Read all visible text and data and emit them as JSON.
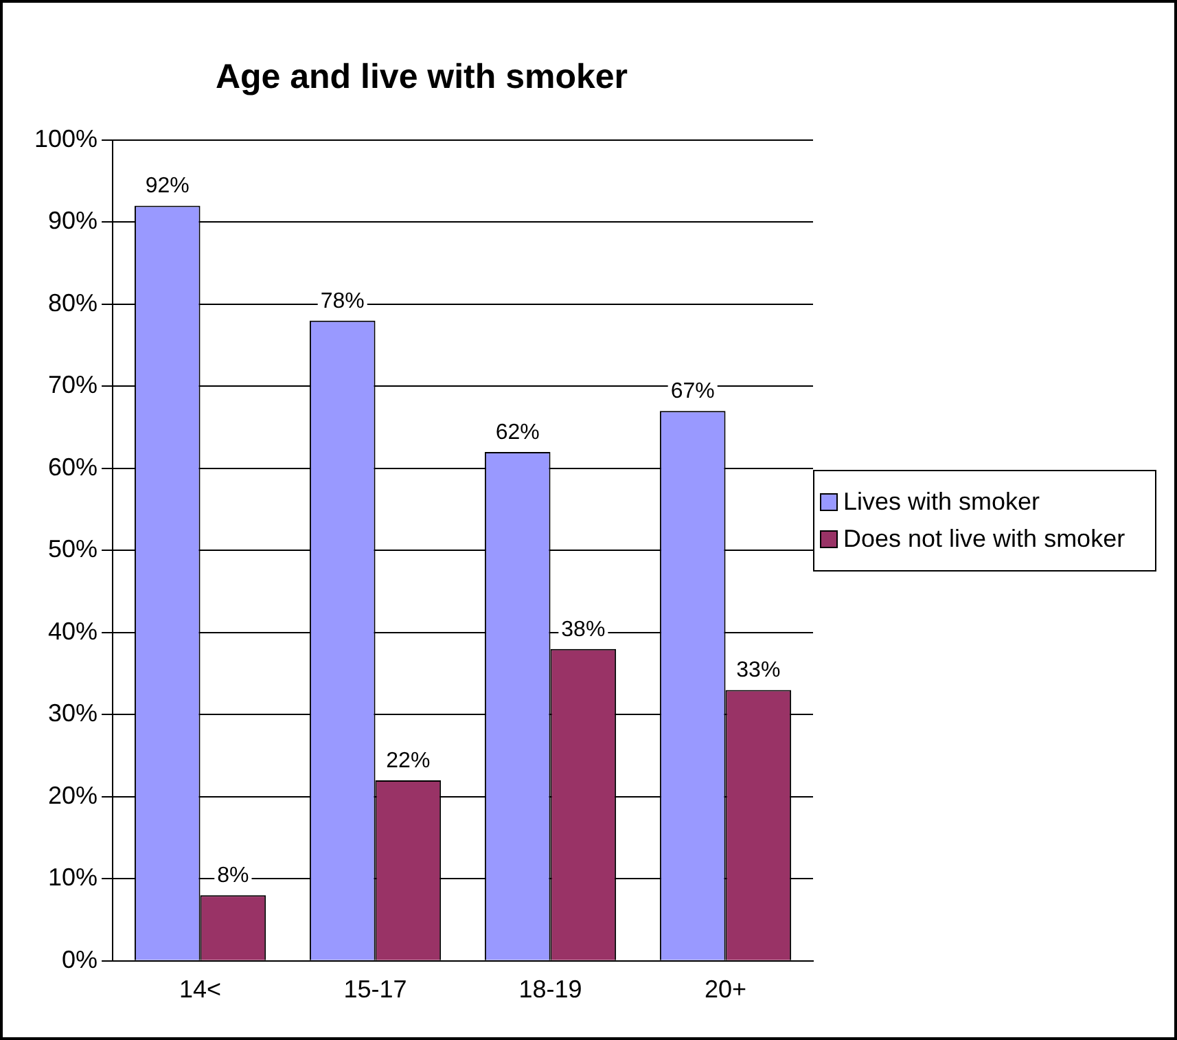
{
  "chart_data": {
    "type": "bar",
    "title": "Age and live with smoker",
    "categories": [
      "14<",
      "15-17",
      "18-19",
      "20+"
    ],
    "series": [
      {
        "name": "Lives with smoker",
        "color": "#9999ff",
        "values": [
          92,
          78,
          62,
          67
        ],
        "value_labels": [
          "92%",
          "78%",
          "62%",
          "67%"
        ]
      },
      {
        "name": "Does not live with smoker",
        "color": "#993366",
        "values": [
          8,
          22,
          38,
          33
        ],
        "value_labels": [
          "8%",
          "22%",
          "38%",
          "33%"
        ]
      }
    ],
    "ylim": [
      0,
      100
    ],
    "yticks": [
      {
        "value": 0,
        "label": "0%"
      },
      {
        "value": 10,
        "label": "10%"
      },
      {
        "value": 20,
        "label": "20%"
      },
      {
        "value": 30,
        "label": "30%"
      },
      {
        "value": 40,
        "label": "40%"
      },
      {
        "value": 50,
        "label": "50%"
      },
      {
        "value": 60,
        "label": "60%"
      },
      {
        "value": 70,
        "label": "70%"
      },
      {
        "value": 80,
        "label": "80%"
      },
      {
        "value": 90,
        "label": "90%"
      },
      {
        "value": 100,
        "label": "100%"
      }
    ],
    "grid": "y",
    "legend": "right"
  }
}
